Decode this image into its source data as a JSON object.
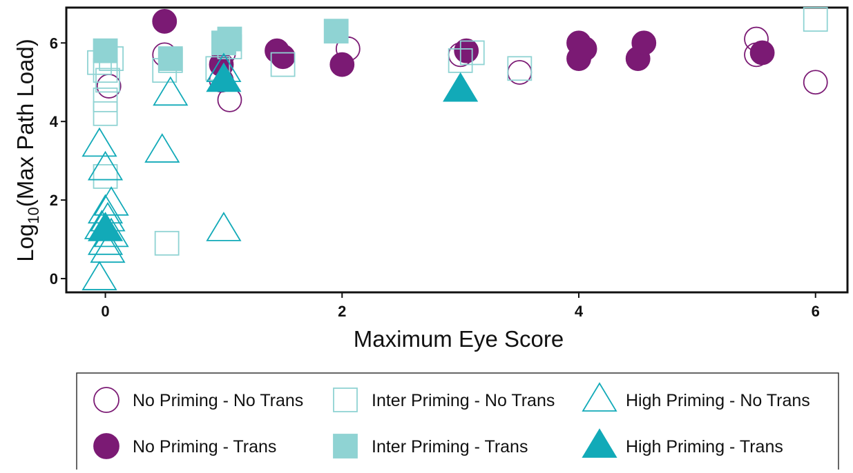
{
  "chart_data": {
    "type": "scatter",
    "title": "",
    "xlabel": "Maximum Eye Score",
    "ylabel_main": "Log",
    "ylabel_sub": "10",
    "ylabel_rest": "(Max Path Load)",
    "xlim": [
      -0.33,
      6.27
    ],
    "ylim": [
      -0.35,
      6.9
    ],
    "x_ticks": [
      0,
      2,
      4,
      6
    ],
    "y_ticks": [
      0,
      2,
      4,
      6
    ],
    "grid": false,
    "legend_position": "bottom",
    "colors": {
      "purple": "#7b1a74",
      "light_teal": "#8fd3d3",
      "teal": "#12aab8"
    },
    "series": [
      {
        "name": "No Priming - No Trans",
        "shape": "circle",
        "filled": false,
        "color": "#7b1a74",
        "points": [
          [
            0.03,
            4.9
          ],
          [
            0.5,
            5.7
          ],
          [
            0.98,
            5.05
          ],
          [
            1.0,
            5.75
          ],
          [
            1.05,
            4.55
          ],
          [
            2.05,
            5.85
          ],
          [
            3.0,
            5.7
          ],
          [
            3.5,
            5.25
          ],
          [
            5.5,
            6.1
          ],
          [
            5.5,
            5.7
          ],
          [
            6.0,
            5.0
          ]
        ]
      },
      {
        "name": "No Priming - Trans",
        "shape": "circle",
        "filled": true,
        "color": "#7b1a74",
        "points": [
          [
            0.5,
            6.55
          ],
          [
            0.98,
            5.45
          ],
          [
            1.45,
            5.8
          ],
          [
            1.5,
            5.65
          ],
          [
            2.0,
            5.45
          ],
          [
            3.05,
            5.8
          ],
          [
            4.0,
            6.0
          ],
          [
            4.0,
            5.6
          ],
          [
            4.05,
            5.85
          ],
          [
            4.5,
            5.6
          ],
          [
            4.55,
            6.0
          ],
          [
            5.55,
            5.75
          ]
        ]
      },
      {
        "name": "Inter Priming - No Trans",
        "shape": "square",
        "filled": false,
        "color": "#8fd3d3",
        "points": [
          [
            -0.05,
            5.5
          ],
          [
            0.05,
            5.6
          ],
          [
            0.0,
            5.3
          ],
          [
            0.02,
            5.05
          ],
          [
            0.0,
            4.55
          ],
          [
            0.0,
            4.2
          ],
          [
            0.0,
            2.6
          ],
          [
            0.5,
            5.3
          ],
          [
            0.55,
            5.55
          ],
          [
            0.52,
            0.9
          ],
          [
            0.95,
            5.35
          ],
          [
            1.05,
            5.9
          ],
          [
            1.5,
            5.45
          ],
          [
            3.0,
            5.55
          ],
          [
            3.1,
            5.75
          ],
          [
            3.5,
            5.35
          ],
          [
            6.0,
            6.6
          ]
        ]
      },
      {
        "name": "Inter Priming - Trans",
        "shape": "square",
        "filled": true,
        "color": "#8fd3d3",
        "points": [
          [
            0.0,
            5.8
          ],
          [
            0.55,
            5.6
          ],
          [
            1.0,
            6.0
          ],
          [
            1.05,
            6.1
          ],
          [
            1.95,
            6.3
          ]
        ]
      },
      {
        "name": "High Priming - No Trans",
        "shape": "triangle",
        "filled": false,
        "color": "#12aab8",
        "points": [
          [
            -0.05,
            3.4
          ],
          [
            0.0,
            2.8
          ],
          [
            0.05,
            1.9
          ],
          [
            0.0,
            1.7
          ],
          [
            0.02,
            1.5
          ],
          [
            -0.03,
            1.3
          ],
          [
            0.05,
            1.1
          ],
          [
            0.0,
            0.9
          ],
          [
            0.02,
            0.7
          ],
          [
            -0.05,
            0.0
          ],
          [
            0.48,
            3.25
          ],
          [
            0.55,
            4.7
          ],
          [
            1.0,
            5.3
          ],
          [
            1.0,
            1.25
          ]
        ]
      },
      {
        "name": "High Priming - Trans",
        "shape": "triangle",
        "filled": true,
        "color": "#12aab8",
        "points": [
          [
            0.0,
            1.25
          ],
          [
            1.0,
            5.05
          ],
          [
            3.0,
            4.8
          ]
        ]
      }
    ]
  }
}
